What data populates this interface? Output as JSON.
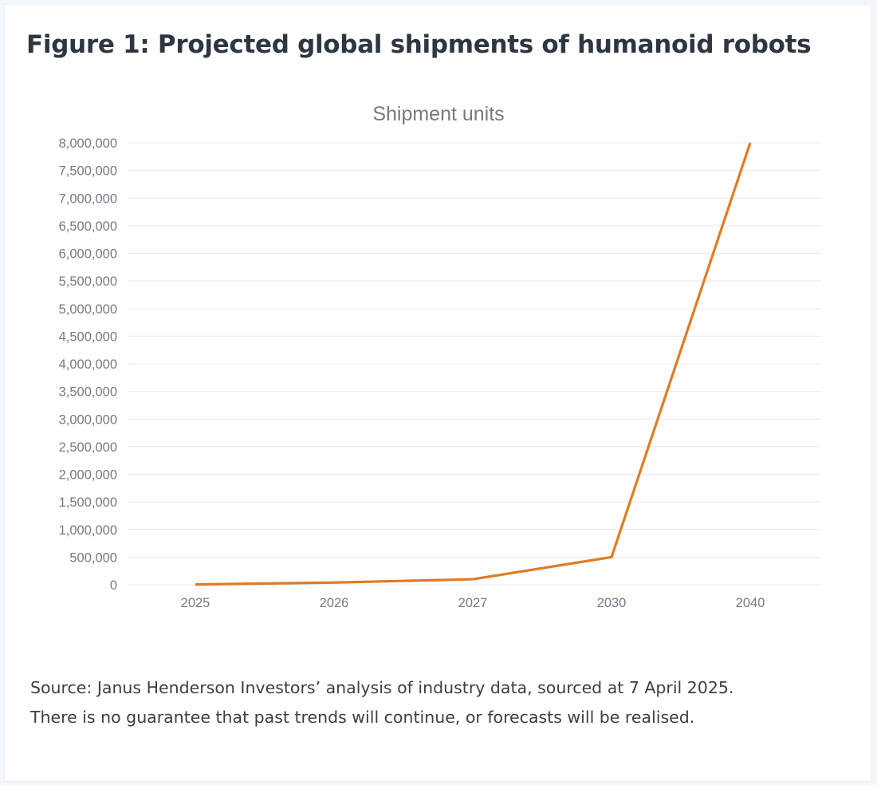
{
  "figure": {
    "title": "Figure 1: Projected global shipments of humanoid robots",
    "source_line1": "Source: Janus Henderson Investors’ analysis of industry data, sourced at 7 April 2025.",
    "source_line2": "There is no guarantee that past trends will continue, or forecasts will be realised."
  },
  "colors": {
    "line": "#e07b24",
    "grid": "#e6e8eb",
    "tick_text": "#747a83",
    "title_text": "#2e3641"
  },
  "chart_data": {
    "type": "line",
    "title": "Shipment units",
    "xlabel": "",
    "ylabel": "",
    "categories": [
      "2025",
      "2026",
      "2027",
      "2030",
      "2040"
    ],
    "series": [
      {
        "name": "Shipment units",
        "values": [
          5000,
          40000,
          100000,
          500000,
          8000000
        ]
      }
    ],
    "ylim": [
      0,
      8000000
    ],
    "yticks": [
      0,
      500000,
      1000000,
      1500000,
      2000000,
      2500000,
      3000000,
      3500000,
      4000000,
      4500000,
      5000000,
      5500000,
      6000000,
      6500000,
      7000000,
      7500000,
      8000000
    ],
    "ytick_labels": [
      "0",
      "500,000",
      "1,000,000",
      "1,500,000",
      "2,000,000",
      "2,500,000",
      "3,000,000",
      "3,500,000",
      "4,000,000",
      "4,500,000",
      "5,000,000",
      "5,500,000",
      "6,000,000",
      "6,500,000",
      "7,000,000",
      "7,500,000",
      "8,000,000"
    ],
    "grid": true,
    "legend": "none"
  }
}
